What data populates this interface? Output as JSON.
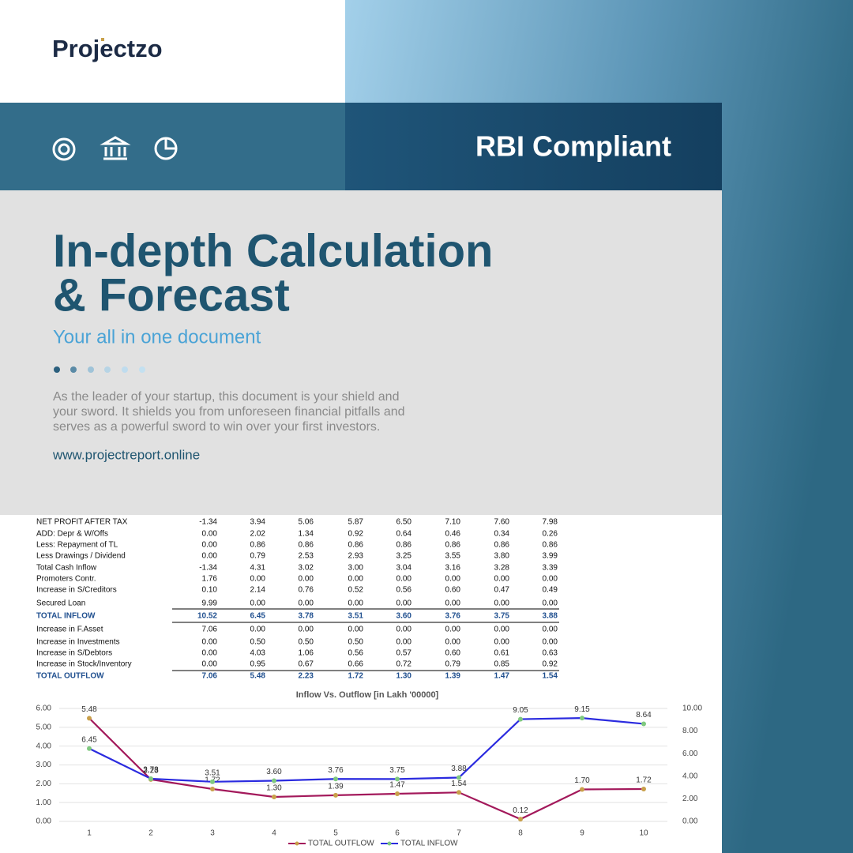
{
  "header": {
    "logo": "Projectzo"
  },
  "banner": {
    "title": "RBI Compliant"
  },
  "hero": {
    "title_lines": [
      "In-depth Calculation",
      "& Forecast"
    ],
    "subtitle": "Your all in one document",
    "body_lines": [
      "As the leader of your startup, this document is your shield and",
      "your sword. It shields you from unforeseen financial pitfalls and",
      "serves as a powerful sword to win over your first investors."
    ],
    "url": "www.projectreport.online"
  },
  "table": {
    "rows": [
      [
        "NET PROFIT AFTER TAX",
        "-1.34",
        "3.94",
        "5.06",
        "5.87",
        "6.50",
        "7.10",
        "7.60",
        "7.98"
      ],
      [
        "ADD: Depr & W/Offs",
        "0.00",
        "2.02",
        "1.34",
        "0.92",
        "0.64",
        "0.46",
        "0.34",
        "0.26"
      ],
      [
        "Less: Repayment of TL",
        "0.00",
        "0.86",
        "0.86",
        "0.86",
        "0.86",
        "0.86",
        "0.86",
        "0.86"
      ],
      [
        "Less Drawings / Dividend",
        "0.00",
        "0.79",
        "2.53",
        "2.93",
        "3.25",
        "3.55",
        "3.80",
        "3.99"
      ],
      [
        "Total Cash Inflow",
        "-1.34",
        "4.31",
        "3.02",
        "3.00",
        "3.04",
        "3.16",
        "3.28",
        "3.39"
      ],
      [
        "Promoters Contr.",
        "1.76",
        "0.00",
        "0.00",
        "0.00",
        "0.00",
        "0.00",
        "0.00",
        "0.00"
      ],
      [
        "Increase in S/Creditors",
        "0.10",
        "2.14",
        "0.76",
        "0.52",
        "0.56",
        "0.60",
        "0.47",
        "0.49"
      ],
      [
        "Secured Loan",
        "9.99",
        "0.00",
        "0.00",
        "0.00",
        "0.00",
        "0.00",
        "0.00",
        "0.00"
      ],
      [
        "TOTAL INFLOW",
        "10.52",
        "6.45",
        "3.78",
        "3.51",
        "3.60",
        "3.76",
        "3.75",
        "3.88"
      ],
      [
        "Increase in F.Asset",
        "7.06",
        "0.00",
        "0.00",
        "0.00",
        "0.00",
        "0.00",
        "0.00",
        "0.00"
      ],
      [
        "Increase in Investments",
        "0.00",
        "0.50",
        "0.50",
        "0.50",
        "0.00",
        "0.00",
        "0.00",
        "0.00"
      ],
      [
        "Increase in S/Debtors",
        "0.00",
        "4.03",
        "1.06",
        "0.56",
        "0.57",
        "0.60",
        "0.61",
        "0.63"
      ],
      [
        "Increase in Stock/Inventory",
        "0.00",
        "0.95",
        "0.67",
        "0.66",
        "0.72",
        "0.79",
        "0.85",
        "0.92"
      ],
      [
        "TOTAL OUTFLOW",
        "7.06",
        "5.48",
        "2.23",
        "1.72",
        "1.30",
        "1.39",
        "1.47",
        "1.54"
      ]
    ]
  },
  "chart_data": {
    "type": "line",
    "title": "Inflow Vs. Outflow [in Lakh '00000]",
    "categories": [
      "1",
      "2",
      "3",
      "4",
      "5",
      "6",
      "7",
      "8",
      "9",
      "10"
    ],
    "series": [
      {
        "name": "TOTAL OUTFLOW",
        "color": "#a3195b",
        "values": [
          5.48,
          2.23,
          1.72,
          1.3,
          1.39,
          1.47,
          1.54,
          0.12,
          1.7,
          1.72
        ],
        "value_labels": [
          "5.48",
          "2.23",
          "1.72",
          "1.30",
          "1.39",
          "1.47",
          "1.54",
          "0.12",
          "1.70",
          "1.72"
        ]
      },
      {
        "name": "TOTAL INFLOW",
        "color": "#2b2bdf",
        "axis": "y2",
        "values": [
          6.45,
          3.78,
          3.51,
          3.6,
          3.76,
          3.75,
          3.88,
          9.05,
          9.15,
          8.64
        ],
        "value_labels": [
          "6.45",
          "3.78",
          "3.51",
          "3.60",
          "3.76",
          "3.75",
          "3.88",
          "9.05",
          "9.15",
          "8.64"
        ]
      }
    ],
    "ylim": [
      0,
      6
    ],
    "yticks": [
      {
        "value": 0,
        "label": "0.00"
      },
      {
        "value": 1,
        "label": "1.00"
      },
      {
        "value": 2,
        "label": "2.00"
      },
      {
        "value": 3,
        "label": "3.00"
      },
      {
        "value": 4,
        "label": "4.00"
      },
      {
        "value": 5,
        "label": "5.00"
      },
      {
        "value": 6,
        "label": "6.00"
      }
    ],
    "y2lim": [
      0,
      10
    ],
    "y2ticks": [
      {
        "value": 0,
        "label": "0.00"
      },
      {
        "value": 2,
        "label": "2.00"
      },
      {
        "value": 4,
        "label": "4.00"
      },
      {
        "value": 6,
        "label": "6.00"
      },
      {
        "value": 8,
        "label": "8.00"
      },
      {
        "value": 10,
        "label": "10.00"
      }
    ],
    "grid": true,
    "legend": "bottom"
  }
}
